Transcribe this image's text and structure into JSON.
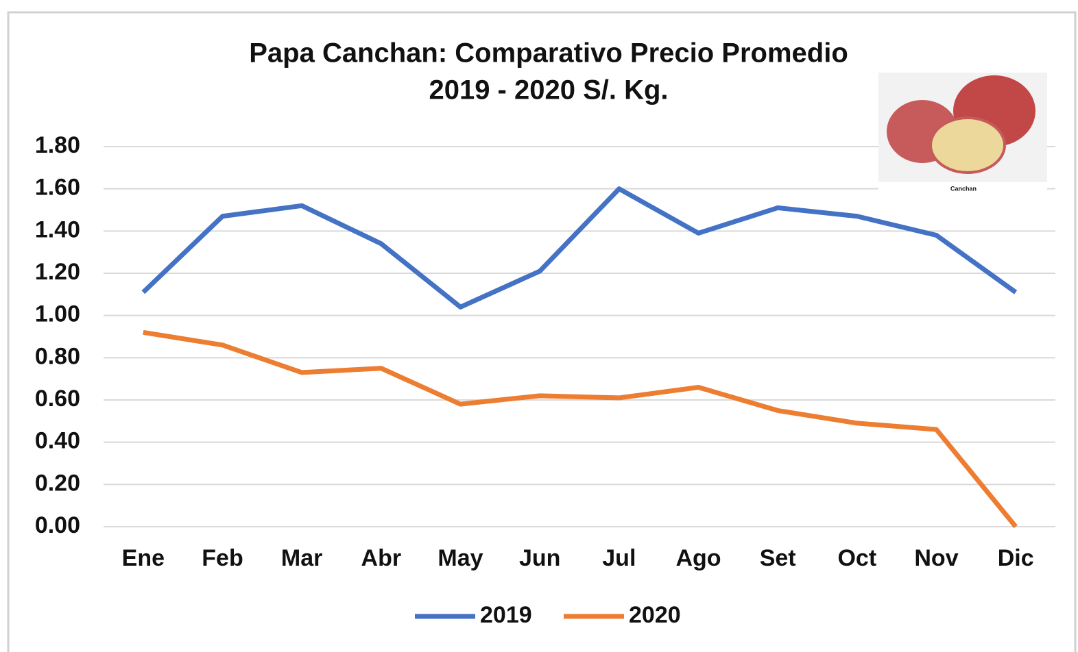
{
  "chart_data": {
    "type": "line",
    "title_lines": [
      "Papa Canchan: Comparativo Precio Promedio",
      "2019 - 2020 S/. Kg."
    ],
    "image_caption": "Canchan",
    "categories": [
      "Ene",
      "Feb",
      "Mar",
      "Abr",
      "May",
      "Jun",
      "Jul",
      "Ago",
      "Set",
      "Oct",
      "Nov",
      "Dic"
    ],
    "series": [
      {
        "name": "2019",
        "color": "#4472c4",
        "values": [
          1.11,
          1.47,
          1.52,
          1.34,
          1.04,
          1.21,
          1.6,
          1.39,
          1.51,
          1.47,
          1.38,
          1.11
        ]
      },
      {
        "name": "2020",
        "color": "#ed7d31",
        "values": [
          0.92,
          0.86,
          0.73,
          0.75,
          0.58,
          0.62,
          0.61,
          0.66,
          0.55,
          0.49,
          0.46,
          0.0
        ]
      }
    ],
    "ylim": [
      0,
      1.8
    ],
    "yticks": [
      {
        "value": 0,
        "label": "0.00"
      },
      {
        "value": 0.2,
        "label": "0.20"
      },
      {
        "value": 0.4,
        "label": "0.40"
      },
      {
        "value": 0.6,
        "label": "0.60"
      },
      {
        "value": 0.8,
        "label": "0.80"
      },
      {
        "value": 1.0,
        "label": "1.00"
      },
      {
        "value": 1.2,
        "label": "1.20"
      },
      {
        "value": 1.4,
        "label": "1.40"
      },
      {
        "value": 1.6,
        "label": "1.60"
      },
      {
        "value": 1.8,
        "label": "1.80"
      }
    ],
    "grid": true,
    "legend": "bottom"
  }
}
